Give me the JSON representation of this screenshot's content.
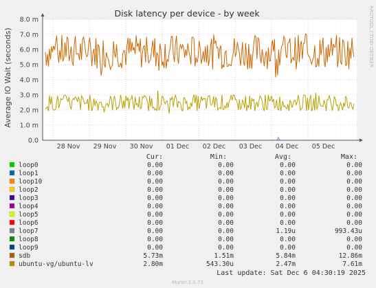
{
  "chart_data": {
    "type": "line",
    "title": "Disk latency per device - by week",
    "ylabel": "Average IO Wait (seconds)",
    "side_label": "RRDTOOL / TOBI OETIKER",
    "ylim": [
      0,
      8.0
    ],
    "y_ticks": [
      {
        "value": 0,
        "label": "0.0"
      },
      {
        "value": 1,
        "label": "1.0 m"
      },
      {
        "value": 2,
        "label": "2.0 m"
      },
      {
        "value": 3,
        "label": "3.0 m"
      },
      {
        "value": 4,
        "label": "4.0 m"
      },
      {
        "value": 5,
        "label": "5.0 m"
      },
      {
        "value": 6,
        "label": "6.0 m"
      },
      {
        "value": 7,
        "label": "7.0 m"
      },
      {
        "value": 8,
        "label": "8.0 m"
      }
    ],
    "x_ticks": [
      "28 Nov",
      "29 Nov",
      "30 Nov",
      "01 Dec",
      "02 Dec",
      "03 Dec",
      "04 Dec",
      "05 Dec"
    ],
    "grid": true,
    "series": [
      {
        "name": "sdb",
        "color": "#cc6600",
        "unit": "ms",
        "mean": 5.84,
        "min": 1.51,
        "max": 12.86,
        "cur": 5.73
      },
      {
        "name": "ubuntu-vg/ubuntu-lv",
        "color": "#b8a000",
        "unit": "ms",
        "mean": 2.47,
        "min": 0.5433,
        "max": 7.61,
        "cur": 2.8
      },
      {
        "name": "loop7",
        "color": "#6688cc",
        "unit": "ms",
        "note": "near-zero with small spike near 04 Dec"
      }
    ]
  },
  "legend": {
    "headers": {
      "cur": "Cur:",
      "min": "Min:",
      "avg": "Avg:",
      "max": "Max:"
    },
    "rows": [
      {
        "name": "loop0",
        "color": "#00cc00",
        "cur": "0.00",
        "min": "0.00",
        "avg": "0.00",
        "max": "0.00"
      },
      {
        "name": "loop1",
        "color": "#0066b3",
        "cur": "0.00",
        "min": "0.00",
        "avg": "0.00",
        "max": "0.00"
      },
      {
        "name": "loop10",
        "color": "#ff8000",
        "cur": "0.00",
        "min": "0.00",
        "avg": "0.00",
        "max": "0.00"
      },
      {
        "name": "loop2",
        "color": "#ffcc00",
        "cur": "0.00",
        "min": "0.00",
        "avg": "0.00",
        "max": "0.00"
      },
      {
        "name": "loop3",
        "color": "#330099",
        "cur": "0.00",
        "min": "0.00",
        "avg": "0.00",
        "max": "0.00"
      },
      {
        "name": "loop4",
        "color": "#990099",
        "cur": "0.00",
        "min": "0.00",
        "avg": "0.00",
        "max": "0.00"
      },
      {
        "name": "loop5",
        "color": "#ccff00",
        "cur": "0.00",
        "min": "0.00",
        "avg": "0.00",
        "max": "0.00"
      },
      {
        "name": "loop6",
        "color": "#ff0000",
        "cur": "0.00",
        "min": "0.00",
        "avg": "0.00",
        "max": "0.00"
      },
      {
        "name": "loop7",
        "color": "#808080",
        "cur": "0.00",
        "min": "0.00",
        "avg": "1.19u",
        "max": "993.43u"
      },
      {
        "name": "loop8",
        "color": "#008f00",
        "cur": "0.00",
        "min": "0.00",
        "avg": "0.00",
        "max": "0.00"
      },
      {
        "name": "loop9",
        "color": "#00487d",
        "cur": "0.00",
        "min": "0.00",
        "avg": "0.00",
        "max": "0.00"
      },
      {
        "name": "sdb",
        "color": "#b35a00",
        "cur": "5.73m",
        "min": "1.51m",
        "avg": "5.84m",
        "max": "12.86m"
      },
      {
        "name": "ubuntu-vg/ubuntu-lv",
        "color": "#b38f00",
        "cur": "2.80m",
        "min": "543.30u",
        "avg": "2.47m",
        "max": "7.61m"
      }
    ]
  },
  "footer": {
    "last_update": "Last update: Sat Dec  6 04:30:19 2025",
    "munin_version": "Munin 2.0.73"
  }
}
